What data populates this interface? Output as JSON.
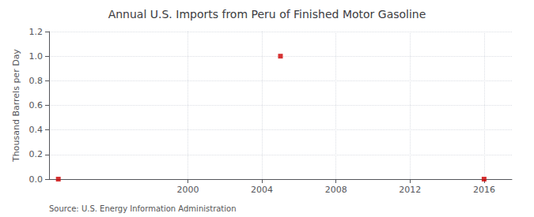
{
  "chart_data": {
    "type": "scatter",
    "title": "Annual U.S. Imports from Peru of Finished Motor Gasoline",
    "ylabel": "Thousand Barrels per Day",
    "annotation": "Source: U.S. Energy Information Administration",
    "x": [
      1993,
      2005,
      2016
    ],
    "values": [
      0.0,
      1.0,
      0.0
    ],
    "color": "#cc0000",
    "marker": "square",
    "xlim": [
      1992.5,
      2017.5
    ],
    "xticks": [
      2000,
      2004,
      2008,
      2012,
      2016
    ],
    "ylim": [
      0.0,
      1.2
    ],
    "yticks": [
      {
        "value": 0,
        "label": "0.0"
      },
      0.2,
      0.4,
      0.6,
      0.8,
      {
        "value": 1,
        "label": "1.0"
      },
      1.2
    ],
    "grid": true
  }
}
